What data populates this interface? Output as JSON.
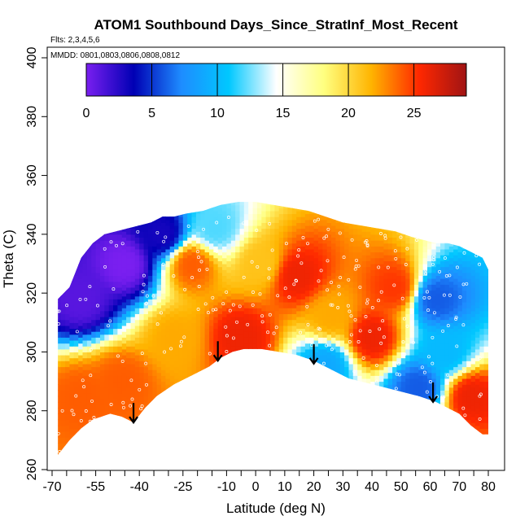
{
  "chart_data": {
    "type": "heatmap",
    "title": "ATOM1 Southbound Days_Since_StratInf_Most_Recent",
    "flights_note": "Flts: 2,3,4,5,6",
    "dates_note": "MMDD: 0801,0803,0806,0808,0812",
    "xlabel": "Latitude (deg N)",
    "ylabel": "Theta (C)",
    "xlim": [
      -70,
      80
    ],
    "ylim": [
      260,
      400
    ],
    "x_ticks_major": [
      "-70",
      "-55",
      "-40",
      "-25",
      "-10",
      "0",
      "10",
      "20",
      "30",
      "40",
      "50",
      "60",
      "70",
      "80"
    ],
    "x_tick_values": [
      -70,
      -55,
      -40,
      -25,
      -10,
      0,
      10,
      20,
      30,
      40,
      50,
      60,
      70,
      80
    ],
    "y_ticks": [
      "260",
      "280",
      "300",
      "320",
      "340",
      "360",
      "380",
      "400"
    ],
    "y_tick_values": [
      260,
      280,
      300,
      320,
      340,
      360,
      380,
      400
    ],
    "colorbar": {
      "range": [
        0,
        29
      ],
      "ticks": [
        "0",
        "5",
        "10",
        "15",
        "20",
        "25"
      ],
      "tick_values": [
        0,
        5,
        10,
        15,
        20,
        25
      ],
      "colors": [
        "#7a1ff0",
        "#0000b4",
        "#1e8cff",
        "#00c8ff",
        "#ffffff",
        "#ffff80",
        "#ffb400",
        "#ff2800",
        "#a01414"
      ]
    },
    "domain_top": [
      [
        -68,
        318
      ],
      [
        -64,
        322
      ],
      [
        -60,
        332
      ],
      [
        -56,
        337
      ],
      [
        -52,
        340
      ],
      [
        -48,
        341
      ],
      [
        -44,
        342
      ],
      [
        -40,
        343
      ],
      [
        -36,
        344
      ],
      [
        -32,
        346
      ],
      [
        -28,
        346
      ],
      [
        -24,
        347
      ],
      [
        -18,
        348
      ],
      [
        -12,
        350
      ],
      [
        -6,
        351
      ],
      [
        0,
        351
      ],
      [
        6,
        350
      ],
      [
        12,
        349
      ],
      [
        18,
        348
      ],
      [
        24,
        346
      ],
      [
        30,
        344
      ],
      [
        36,
        343
      ],
      [
        42,
        342
      ],
      [
        48,
        341
      ],
      [
        54,
        339
      ],
      [
        58,
        338
      ],
      [
        62,
        337
      ],
      [
        66,
        337
      ],
      [
        70,
        336
      ],
      [
        74,
        334
      ],
      [
        78,
        332
      ],
      [
        80,
        328
      ]
    ],
    "domain_bottom": [
      [
        -68,
        265
      ],
      [
        -64,
        270
      ],
      [
        -60,
        274
      ],
      [
        -56,
        277
      ],
      [
        -50,
        279
      ],
      [
        -46,
        278
      ],
      [
        -42,
        276
      ],
      [
        -38,
        281
      ],
      [
        -34,
        285
      ],
      [
        -28,
        289
      ],
      [
        -22,
        292
      ],
      [
        -16,
        295
      ],
      [
        -12,
        298
      ],
      [
        -8,
        300
      ],
      [
        -4,
        301
      ],
      [
        2,
        301
      ],
      [
        8,
        300
      ],
      [
        14,
        299
      ],
      [
        20,
        297
      ],
      [
        26,
        294
      ],
      [
        32,
        291
      ],
      [
        40,
        289
      ],
      [
        48,
        287
      ],
      [
        56,
        285
      ],
      [
        62,
        283
      ],
      [
        66,
        281
      ],
      [
        70,
        279
      ],
      [
        74,
        275
      ],
      [
        78,
        272
      ],
      [
        80,
        272
      ]
    ],
    "hot_spots": [
      {
        "lat": -5,
        "theta": 305,
        "value": 26
      },
      {
        "lat": 14,
        "theta": 326,
        "value": 26
      },
      {
        "lat": 40,
        "theta": 305,
        "value": 26
      },
      {
        "lat": 48,
        "theta": 322,
        "value": 25
      },
      {
        "lat": 2,
        "theta": 330,
        "value": 21
      },
      {
        "lat": -22,
        "theta": 330,
        "value": 24
      },
      {
        "lat": -60,
        "theta": 285,
        "value": 24
      },
      {
        "lat": -46,
        "theta": 290,
        "value": 24
      },
      {
        "lat": 26,
        "theta": 312,
        "value": 22
      },
      {
        "lat": -28,
        "theta": 305,
        "value": 22
      },
      {
        "lat": 74,
        "theta": 285,
        "value": 26
      }
    ],
    "cold_spots": [
      {
        "lat": -45,
        "theta": 330,
        "value": 0
      },
      {
        "lat": -60,
        "theta": 318,
        "value": 1
      },
      {
        "lat": -32,
        "theta": 340,
        "value": 3
      },
      {
        "lat": 62,
        "theta": 318,
        "value": 6
      },
      {
        "lat": 56,
        "theta": 288,
        "value": 6
      },
      {
        "lat": 24,
        "theta": 296,
        "value": 9
      },
      {
        "lat": -14,
        "theta": 342,
        "value": 12
      },
      {
        "lat": 65,
        "theta": 300,
        "value": 10
      }
    ],
    "arrows": [
      {
        "lat": -42,
        "theta": 276
      },
      {
        "lat": -13,
        "theta": 297
      },
      {
        "lat": 20,
        "theta": 296
      },
      {
        "lat": 61,
        "theta": 283
      }
    ]
  }
}
